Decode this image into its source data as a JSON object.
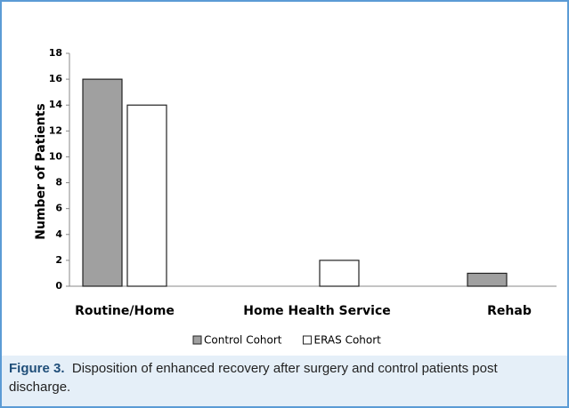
{
  "chart_data": {
    "type": "bar",
    "categories": [
      "Routine/Home",
      "Home Health Service",
      "Rehab"
    ],
    "series": [
      {
        "name": "Control Cohort",
        "color": "#a0a0a0",
        "values": [
          16,
          0,
          1
        ]
      },
      {
        "name": "ERAS Cohort",
        "color": "#ffffff",
        "values": [
          14,
          2,
          0
        ]
      }
    ],
    "y_label": "Number of Patients",
    "ylim": [
      0,
      18
    ],
    "yticks": [
      0,
      2,
      4,
      6,
      8,
      10,
      12,
      14,
      16,
      18
    ],
    "legend": "bottom"
  },
  "caption": {
    "label": "Figure 3.",
    "text": "Disposition of enhanced recovery after surgery and control patients post discharge."
  }
}
